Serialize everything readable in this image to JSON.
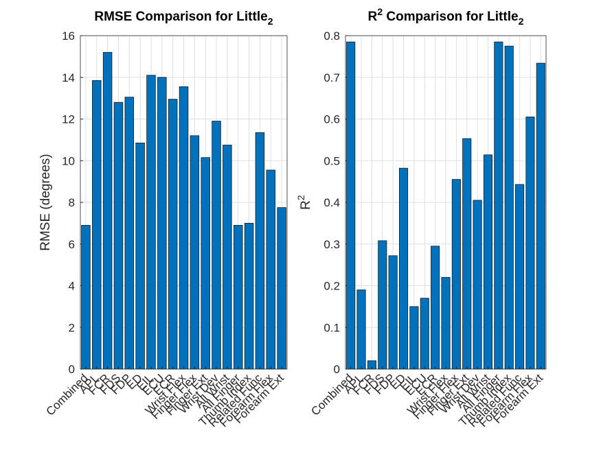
{
  "chart_data": [
    {
      "type": "bar",
      "title": [
        {
          "text": "RMSE Comparison for Little"
        },
        {
          "text": "2",
          "script": "sub"
        }
      ],
      "ylabel": [
        {
          "text": "RMSE (degrees)"
        }
      ],
      "categories": [
        "Combined",
        "APL",
        "FCR",
        "FDS",
        "FDP",
        "ED",
        "EIL",
        "ECU",
        "ECR",
        "Wrist Flex",
        "Finger Flex",
        "Finger Ext",
        "Wrist Dev",
        "All Wrist",
        "All Finger",
        "Thumb Index",
        "Related Func",
        "Forearm Flex",
        "Forearm Ext"
      ],
      "values": [
        6.9,
        13.85,
        15.2,
        12.8,
        13.05,
        10.85,
        14.1,
        14.0,
        12.95,
        13.55,
        11.2,
        10.15,
        11.9,
        10.75,
        6.9,
        7.0,
        11.35,
        9.55,
        7.75
      ],
      "color": "#0072bd",
      "ylim": [
        0,
        16
      ],
      "yticks": [
        0,
        2,
        4,
        6,
        8,
        10,
        12,
        14,
        16
      ],
      "grid": true
    },
    {
      "type": "bar",
      "title": [
        {
          "text": "R"
        },
        {
          "text": "2",
          "script": "super"
        },
        {
          "text": " Comparison for Little"
        },
        {
          "text": "2",
          "script": "sub"
        }
      ],
      "ylabel": [
        {
          "text": "R"
        },
        {
          "text": "2",
          "script": "super"
        }
      ],
      "categories": [
        "Combined",
        "APL",
        "FCR",
        "FDS",
        "FDP",
        "ED",
        "EIL",
        "ECU",
        "ECR",
        "Wrist Flex",
        "Finger Flex",
        "Finger Ext",
        "Wrist Dev",
        "All Wrist",
        "All Finger",
        "Thumb Index",
        "Related Func",
        "Forearm Flex",
        "Forearm Ext"
      ],
      "values": [
        0.785,
        0.19,
        0.02,
        0.308,
        0.272,
        0.482,
        0.15,
        0.17,
        0.295,
        0.22,
        0.455,
        0.553,
        0.405,
        0.514,
        0.785,
        0.775,
        0.443,
        0.605,
        0.734
      ],
      "color": "#0072bd",
      "ylim": [
        0,
        0.8
      ],
      "yticks": [
        0,
        0.1,
        0.2,
        0.3,
        0.4,
        0.5,
        0.6,
        0.7,
        0.8
      ],
      "grid": true
    }
  ]
}
